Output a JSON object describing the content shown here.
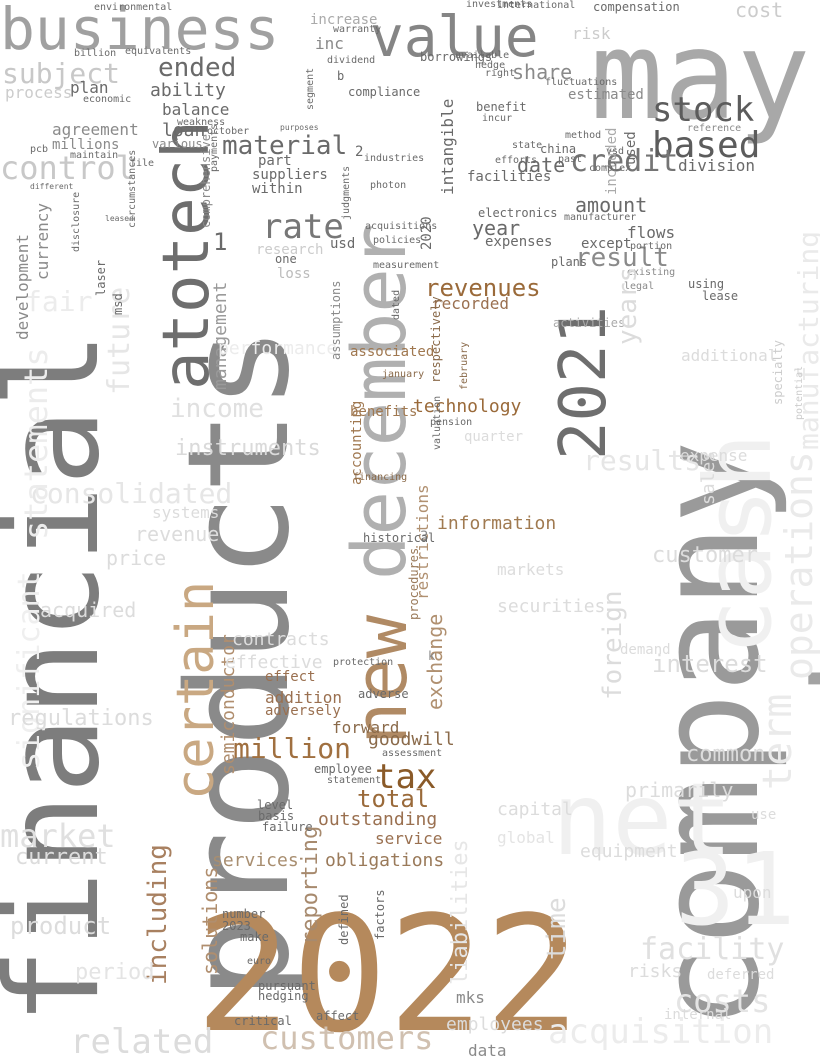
{
  "words": [
    {
      "text": "financial",
      "color": "#7d7d7d"
    },
    {
      "text": "products",
      "color": "#8a8a8a"
    },
    {
      "text": "company",
      "color": "#9a9a9a"
    },
    {
      "text": "assets",
      "color": "#a3a3a3"
    },
    {
      "text": "2022",
      "color": "#b5895c"
    },
    {
      "text": "may",
      "color": "#a8a8a8"
    },
    {
      "text": "net",
      "color": "#f0f0f0"
    },
    {
      "text": "cash",
      "color": "#f0f0f0"
    },
    {
      "text": "31",
      "color": "#f0f0f0"
    },
    {
      "text": "december",
      "color": "#b0b0b0"
    },
    {
      "text": "new",
      "color": "#b08a64"
    },
    {
      "text": "2021",
      "color": "#6e6e6e"
    },
    {
      "text": "atotech",
      "color": "#6e6e6e"
    },
    {
      "text": "business",
      "color": "#a0a0a0"
    },
    {
      "text": "value",
      "color": "#858585"
    },
    {
      "text": "certain",
      "color": "#c9a882"
    },
    {
      "text": "based",
      "color": "#5c5c5c"
    },
    {
      "text": "stock",
      "color": "#5c5c5c"
    },
    {
      "text": "credit",
      "color": "#757575"
    },
    {
      "text": "tax",
      "color": "#8a5a28"
    },
    {
      "text": "million",
      "color": "#a07040"
    },
    {
      "text": "total",
      "color": "#9a6a3a"
    },
    {
      "text": "customers",
      "color": "#d0c0b0"
    },
    {
      "text": "rate",
      "color": "#777777"
    },
    {
      "text": "material",
      "color": "#6a6a6a"
    },
    {
      "text": "control",
      "color": "#c8c8c8"
    },
    {
      "text": "term",
      "color": "#eaeaea"
    },
    {
      "text": "operations",
      "color": "#eaeaea"
    },
    {
      "text": "manufacturing",
      "color": "#eaeaea"
    },
    {
      "text": "acquisition",
      "color": "#ececec"
    },
    {
      "text": "costs",
      "color": "#e4e4e4"
    },
    {
      "text": "facility",
      "color": "#e0e0e0"
    },
    {
      "text": "related",
      "color": "#dcdcdc"
    },
    {
      "text": "market",
      "color": "#e0e0e0"
    },
    {
      "text": "consolidated",
      "color": "#e6e6e6"
    },
    {
      "text": "statements",
      "color": "#ececec"
    },
    {
      "text": "significant",
      "color": "#efefef"
    },
    {
      "text": "including",
      "color": "#a88060"
    },
    {
      "text": "semiconductor",
      "color": "#b08e6e"
    },
    {
      "text": "solutions",
      "color": "#b08e6e"
    },
    {
      "text": "reporting",
      "color": "#a78a6e"
    },
    {
      "text": "revenues",
      "color": "#9a6a3a"
    },
    {
      "text": "technology",
      "color": "#9a6a3a"
    },
    {
      "text": "information",
      "color": "#a07a50"
    },
    {
      "text": "goodwill",
      "color": "#8a6a4a"
    },
    {
      "text": "services",
      "color": "#a88e70"
    },
    {
      "text": "obligations",
      "color": "#9a7a5a"
    },
    {
      "text": "outstanding",
      "color": "#9a7050"
    },
    {
      "text": "service",
      "color": "#9a7050"
    },
    {
      "text": "forward",
      "color": "#8a6a4a"
    },
    {
      "text": "adversely",
      "color": "#9a7050"
    },
    {
      "text": "addition",
      "color": "#9a7050"
    },
    {
      "text": "effect",
      "color": "#9a7050"
    },
    {
      "text": "exchange",
      "color": "#b09070"
    },
    {
      "text": "restrictions",
      "color": "#b09070"
    },
    {
      "text": "accounting",
      "color": "#a07850"
    },
    {
      "text": "benefits",
      "color": "#a07850"
    },
    {
      "text": "associated",
      "color": "#a07850"
    },
    {
      "text": "recorded",
      "color": "#9a7050"
    },
    {
      "text": "management",
      "color": "#9a9a9a"
    },
    {
      "text": "income",
      "color": "#e0e0e0"
    },
    {
      "text": "instruments",
      "color": "#dadada"
    },
    {
      "text": "performance",
      "color": "#ececec"
    },
    {
      "text": "future",
      "color": "#e6e6e6"
    },
    {
      "text": "fair",
      "color": "#ececec"
    },
    {
      "text": "development",
      "color": "#8a8a8a"
    },
    {
      "text": "currency",
      "color": "#8a8a8a"
    },
    {
      "text": "agreement",
      "color": "#8a8a8a"
    },
    {
      "text": "subject",
      "color": "#c8c8c8"
    },
    {
      "text": "ended",
      "color": "#6a6a6a"
    },
    {
      "text": "plan",
      "color": "#6a6a6a"
    },
    {
      "text": "ability",
      "color": "#6a6a6a"
    },
    {
      "text": "balance",
      "color": "#6a6a6a"
    },
    {
      "text": "loan",
      "color": "#6a6a6a"
    },
    {
      "text": "millions",
      "color": "#8a8a8a"
    },
    {
      "text": "various",
      "color": "#8a8a8a"
    },
    {
      "text": "share",
      "color": "#8a8a8a"
    },
    {
      "text": "inc",
      "color": "#8a8a8a"
    },
    {
      "text": "increase",
      "color": "#aaaaaa"
    },
    {
      "text": "amount",
      "color": "#6a6a6a"
    },
    {
      "text": "division",
      "color": "#6a6a6a"
    },
    {
      "text": "result",
      "color": "#8a8a8a"
    },
    {
      "text": "year",
      "color": "#6a6a6a"
    },
    {
      "text": "expenses",
      "color": "#6a6a6a"
    },
    {
      "text": "date",
      "color": "#6a6a6a"
    },
    {
      "text": "facilities",
      "color": "#6a6a6a"
    },
    {
      "text": "intangible",
      "color": "#6a6a6a"
    },
    {
      "text": "2020",
      "color": "#6a6a6a"
    },
    {
      "text": "used",
      "color": "#6a6a6a"
    },
    {
      "text": "included",
      "color": "#aaaaaa"
    },
    {
      "text": "estimated",
      "color": "#8a8a8a"
    },
    {
      "text": "flows",
      "color": "#6a6a6a"
    },
    {
      "text": "except",
      "color": "#6a6a6a"
    },
    {
      "text": "plans",
      "color": "#6a6a6a"
    },
    {
      "text": "activities",
      "color": "#aaaaaa"
    },
    {
      "text": "part",
      "color": "#6a6a6a"
    },
    {
      "text": "suppliers",
      "color": "#6a6a6a"
    },
    {
      "text": "within",
      "color": "#6a6a6a"
    },
    {
      "text": "comprehensive",
      "color": "#8a8a8a"
    },
    {
      "text": "usd",
      "color": "#6a6a6a"
    },
    {
      "text": "loss",
      "color": "#bbbbbb"
    },
    {
      "text": "one",
      "color": "#6a6a6a"
    },
    {
      "text": "research",
      "color": "#cccccc"
    },
    {
      "text": "assumptions",
      "color": "#8a8a8a"
    },
    {
      "text": "respectively",
      "color": "#8a6a4a"
    },
    {
      "text": "procedures",
      "color": "#9a7a5a"
    },
    {
      "text": "electronics",
      "color": "#6a6a6a"
    },
    {
      "text": "acquisitions",
      "color": "#6a6a6a"
    },
    {
      "text": "policies",
      "color": "#6a6a6a"
    },
    {
      "text": "measurement",
      "color": "#6a6a6a"
    },
    {
      "text": "photon",
      "color": "#6a6a6a"
    },
    {
      "text": "industries",
      "color": "#6a6a6a"
    },
    {
      "text": "compliance",
      "color": "#6a6a6a"
    },
    {
      "text": "borrowings",
      "color": "#6a6a6a"
    },
    {
      "text": "available",
      "color": "#6a6a6a"
    },
    {
      "text": "investments",
      "color": "#6a6a6a"
    },
    {
      "text": "international",
      "color": "#6a6a6a"
    },
    {
      "text": "compensation",
      "color": "#6a6a6a"
    },
    {
      "text": "benefit",
      "color": "#6a6a6a"
    },
    {
      "text": "incur",
      "color": "#6a6a6a"
    },
    {
      "text": "lease",
      "color": "#6a6a6a"
    },
    {
      "text": "using",
      "color": "#6a6a6a"
    },
    {
      "text": "legal",
      "color": "#8a8a8a"
    },
    {
      "text": "existing",
      "color": "#8a8a8a"
    },
    {
      "text": "fluctuations",
      "color": "#6a6a6a"
    },
    {
      "text": "china",
      "color": "#6a6a6a"
    },
    {
      "text": "state",
      "color": "#6a6a6a"
    },
    {
      "text": "efforts",
      "color": "#6a6a6a"
    },
    {
      "text": "manufacturer",
      "color": "#6a6a6a"
    },
    {
      "text": "portion",
      "color": "#6a6a6a"
    },
    {
      "text": "customer",
      "color": "#dcdcdc"
    },
    {
      "text": "interest",
      "color": "#dcdcdc"
    },
    {
      "text": "foreign",
      "color": "#dcdcdc"
    },
    {
      "text": "securities",
      "color": "#dcdcdc"
    },
    {
      "text": "markets",
      "color": "#dcdcdc"
    },
    {
      "text": "results",
      "color": "#e6e6e6"
    },
    {
      "text": "years",
      "color": "#dcdcdc"
    },
    {
      "text": "risks",
      "color": "#dcdcdc"
    },
    {
      "text": "common",
      "color": "#dcdcdc"
    },
    {
      "text": "equipment",
      "color": "#dcdcdc"
    },
    {
      "text": "employees",
      "color": "#dcdcdc"
    },
    {
      "text": "capital",
      "color": "#dcdcdc"
    },
    {
      "text": "global",
      "color": "#e4e4e4"
    },
    {
      "text": "primarily",
      "color": "#dcdcdc"
    },
    {
      "text": "product",
      "color": "#dcdcdc"
    },
    {
      "text": "current",
      "color": "#dcdcdc"
    },
    {
      "text": "regulations",
      "color": "#dcdcdc"
    },
    {
      "text": "acquired",
      "color": "#dcdcdc"
    },
    {
      "text": "price",
      "color": "#dcdcdc"
    },
    {
      "text": "revenue",
      "color": "#dcdcdc"
    },
    {
      "text": "contracts",
      "color": "#dcdcdc"
    },
    {
      "text": "systems",
      "color": "#dcdcdc"
    },
    {
      "text": "effective",
      "color": "#dcdcdc"
    },
    {
      "text": "period",
      "color": "#e4e4e4"
    },
    {
      "text": "data",
      "color": "#8a8a8a"
    },
    {
      "text": "mks",
      "color": "#8a8a8a"
    },
    {
      "text": "time",
      "color": "#dcdcdc"
    },
    {
      "text": "1",
      "color": "#6a6a6a"
    },
    {
      "text": "2",
      "color": "#6a6a6a"
    },
    {
      "text": "3",
      "color": "#8a8a8a"
    },
    {
      "text": "b",
      "color": "#6a6a6a"
    },
    {
      "text": "k",
      "color": "#8a8a8a"
    },
    {
      "text": "laser",
      "color": "#6a6a6a"
    },
    {
      "text": "msd",
      "color": "#6a6a6a"
    },
    {
      "text": "pcb",
      "color": "#6a6a6a"
    },
    {
      "text": "file",
      "color": "#6a6a6a"
    },
    {
      "text": "october",
      "color": "#6a6a6a"
    },
    {
      "text": "weakness",
      "color": "#6a6a6a"
    },
    {
      "text": "maintain",
      "color": "#6a6a6a"
    },
    {
      "text": "economic",
      "color": "#6a6a6a"
    },
    {
      "text": "process",
      "color": "#cccccc"
    },
    {
      "text": "billion",
      "color": "#6a6a6a"
    },
    {
      "text": "equivalents",
      "color": "#6a6a6a"
    },
    {
      "text": "environmental",
      "color": "#6a6a6a"
    },
    {
      "text": "warranty",
      "color": "#6a6a6a"
    },
    {
      "text": "dividend",
      "color": "#6a6a6a"
    },
    {
      "text": "segment",
      "color": "#6a6a6a"
    },
    {
      "text": "cost",
      "color": "#cccccc"
    },
    {
      "text": "risk",
      "color": "#cccccc"
    },
    {
      "text": "hedge",
      "color": "#6a6a6a"
    },
    {
      "text": "right",
      "color": "#6a6a6a"
    },
    {
      "text": "method",
      "color": "#6a6a6a"
    },
    {
      "text": "past",
      "color": "#6a6a6a"
    },
    {
      "text": "complex",
      "color": "#6a6a6a"
    },
    {
      "text": "reference",
      "color": "#8a8a8a"
    },
    {
      "text": "vsd",
      "color": "#6a6a6a"
    },
    {
      "text": "purposes",
      "color": "#6a6a6a"
    },
    {
      "text": "judgments",
      "color": "#6a6a6a"
    },
    {
      "text": "dated",
      "color": "#6a6a6a"
    },
    {
      "text": "payments",
      "color": "#6a6a6a"
    },
    {
      "text": "circumstances",
      "color": "#6a6a6a"
    },
    {
      "text": "disclosure",
      "color": "#6a6a6a"
    },
    {
      "text": "different",
      "color": "#6a6a6a"
    },
    {
      "text": "leased",
      "color": "#6a6a6a"
    },
    {
      "text": "specialty",
      "color": "#cccccc"
    },
    {
      "text": "potential",
      "color": "#cccccc"
    },
    {
      "text": "additional",
      "color": "#dcdcdc"
    },
    {
      "text": "expense",
      "color": "#dcdcdc"
    },
    {
      "text": "quarter",
      "color": "#dcdcdc"
    },
    {
      "text": "sales",
      "color": "#dcdcdc"
    },
    {
      "text": "demand",
      "color": "#dcdcdc"
    },
    {
      "text": "upon",
      "color": "#dcdcdc"
    },
    {
      "text": "use",
      "color": "#dcdcdc"
    },
    {
      "text": "internal",
      "color": "#dcdcdc"
    },
    {
      "text": "deferred",
      "color": "#dcdcdc"
    },
    {
      "text": "liabilities",
      "color": "#e6e6e6"
    },
    {
      "text": "january",
      "color": "#8a6a4a"
    },
    {
      "text": "february",
      "color": "#8a6a4a"
    },
    {
      "text": "historical",
      "color": "#6a6a6a"
    },
    {
      "text": "financing",
      "color": "#8a6a4a"
    },
    {
      "text": "pension",
      "color": "#6a6a6a"
    },
    {
      "text": "valuation",
      "color": "#6a6a6a"
    },
    {
      "text": "employee",
      "color": "#6a6a6a"
    },
    {
      "text": "assessment",
      "color": "#6a6a6a"
    },
    {
      "text": "statement",
      "color": "#6a6a6a"
    },
    {
      "text": "level",
      "color": "#6a6a6a"
    },
    {
      "text": "basis",
      "color": "#6a6a6a"
    },
    {
      "text": "failure",
      "color": "#6a6a6a"
    },
    {
      "text": "number",
      "color": "#6a6a6a"
    },
    {
      "text": "2023",
      "color": "#6a6a6a"
    },
    {
      "text": "make",
      "color": "#6a6a6a"
    },
    {
      "text": "euro",
      "color": "#6a6a6a"
    },
    {
      "text": "pursuant",
      "color": "#6a6a6a"
    },
    {
      "text": "hedging",
      "color": "#6a6a6a"
    },
    {
      "text": "factors",
      "color": "#6a6a6a"
    },
    {
      "text": "defined",
      "color": "#6a6a6a"
    },
    {
      "text": "protection",
      "color": "#6a6a6a"
    },
    {
      "text": "adverse",
      "color": "#6a6a6a"
    },
    {
      "text": "affect",
      "color": "#6a6a6a"
    },
    {
      "text": "critical",
      "color": "#6a6a6a"
    }
  ]
}
